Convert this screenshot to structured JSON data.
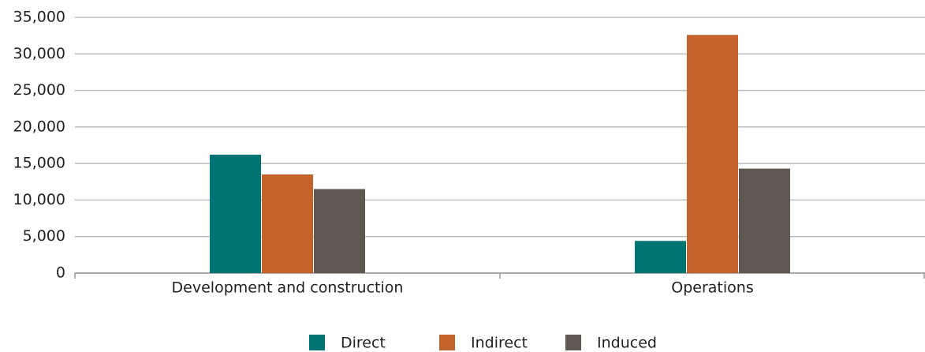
{
  "chart_data": {
    "type": "bar",
    "categories": [
      "Development and construction",
      "Operations"
    ],
    "series": [
      {
        "name": "Direct",
        "color": "#007373",
        "values": [
          16200,
          4400
        ]
      },
      {
        "name": "Indirect",
        "color": "#c4622b",
        "values": [
          13500,
          32600
        ]
      },
      {
        "name": "Induced",
        "color": "#5e5850",
        "values": [
          11500,
          14300
        ]
      }
    ],
    "ylim": [
      0,
      35000
    ],
    "yticks": [
      0,
      {
        "value": 5000,
        "label": "5,000"
      },
      {
        "value": 10000,
        "label": "10,000"
      },
      {
        "value": 15000,
        "label": "15,000"
      },
      {
        "value": 20000,
        "label": "20,000"
      },
      {
        "value": 25000,
        "label": "25,000"
      },
      {
        "value": 30000,
        "label": "30,000"
      },
      {
        "value": 35000,
        "label": "35,000"
      }
    ],
    "grid": true,
    "legend": "bottom"
  }
}
